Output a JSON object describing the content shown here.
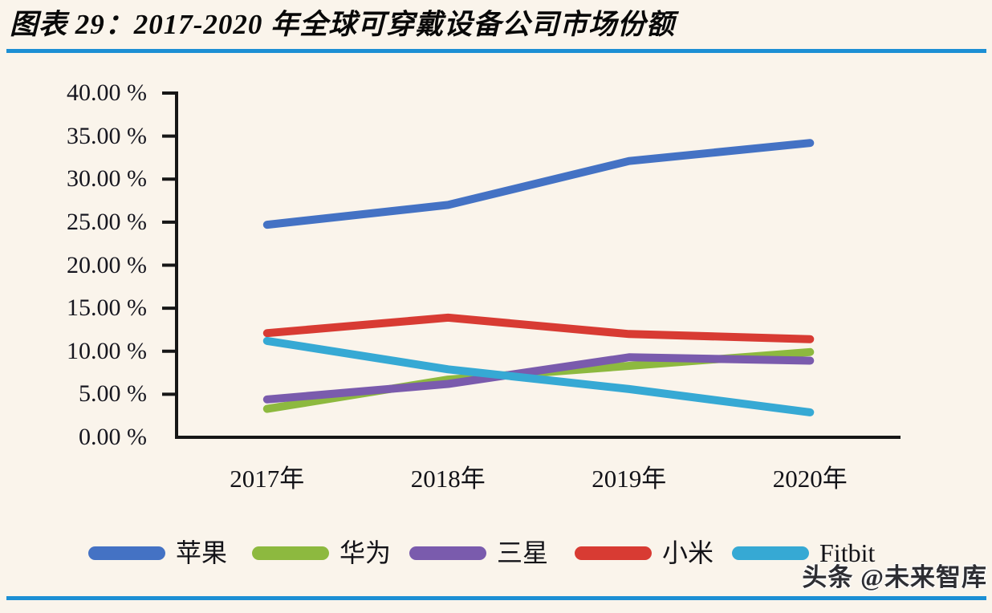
{
  "title": "图表 29：2017-2020 年全球可穿戴设备公司市场份额",
  "watermark": "头条 @未来智库",
  "colors": {
    "background": "#faf4eb",
    "rule_blue": "#1c8fd4",
    "axis": "#161616"
  },
  "chart_data": {
    "type": "line",
    "title": "2017-2020 年全球可穿戴设备公司市场份额",
    "categories": [
      "2017年",
      "2018年",
      "2019年",
      "2020年"
    ],
    "series": [
      {
        "name": "苹果",
        "slug": "apple",
        "color": "#4472c4",
        "values": [
          24.7,
          27.0,
          32.1,
          34.2
        ]
      },
      {
        "name": "华为",
        "slug": "huawei",
        "color": "#8db93f",
        "values": [
          3.3,
          6.7,
          8.3,
          9.9
        ]
      },
      {
        "name": "三星",
        "slug": "samsung",
        "color": "#7a5bad",
        "values": [
          4.4,
          6.2,
          9.3,
          8.9
        ]
      },
      {
        "name": "小米",
        "slug": "xiaomi",
        "color": "#d83b33",
        "values": [
          12.1,
          13.9,
          12.0,
          11.4
        ]
      },
      {
        "name": "Fitbit",
        "slug": "fitbit",
        "color": "#36a9d4",
        "values": [
          11.2,
          7.9,
          5.6,
          2.9
        ]
      }
    ],
    "ylim": [
      0,
      40
    ],
    "ytick_step": 5,
    "ytick_labels": [
      "0.00 %",
      "5.00 %",
      "10.00 %",
      "15.00 %",
      "20.00 %",
      "25.00 %",
      "30.00 %",
      "35.00 %",
      "40.00 %"
    ],
    "xlabel": "",
    "ylabel": "",
    "grid": false,
    "legend_position": "bottom"
  }
}
